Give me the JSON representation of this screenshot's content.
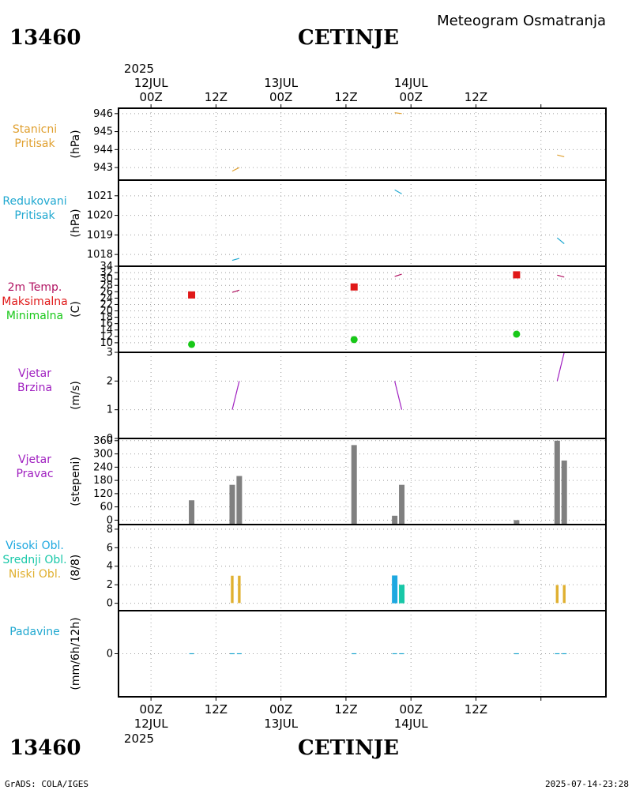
{
  "station": {
    "id": "13460",
    "name": "CETINJE",
    "subtitle": "Meteogram Osmatranja"
  },
  "time_axis": {
    "year": "2025",
    "top_ticks": [
      {
        "hour": "00Z",
        "date": "12JUL"
      },
      {
        "hour": "12Z",
        "date": ""
      },
      {
        "hour": "00Z",
        "date": "13JUL"
      },
      {
        "hour": "12Z",
        "date": ""
      },
      {
        "hour": "00Z",
        "date": "14JUL"
      },
      {
        "hour": "12Z",
        "date": ""
      }
    ],
    "x_range_hours": [
      -6,
      84
    ]
  },
  "footer": {
    "left": "GrADS: COLA/IGES",
    "right": "2025-07-14-23:28"
  },
  "colors": {
    "station_pressure": "#e0a030",
    "reduced_pressure": "#20a8d0",
    "temp_line": "#b01060",
    "temp_max": "#e01818",
    "temp_min": "#18c818",
    "wind_speed": "#a020c0",
    "wind_dir_bar": "#808080",
    "cloud_high": "#1ea8e0",
    "cloud_mid": "#18c8a8",
    "cloud_low": "#e0b030",
    "precip": "#20a8d0",
    "grid": "#a0a0a0"
  },
  "chart_data": [
    {
      "type": "line",
      "title": [
        "Stanicni",
        "Pritisak"
      ],
      "ylabel": "(hPa)",
      "ylim": [
        942.3,
        946.3
      ],
      "yticks": [
        943,
        944,
        945,
        946
      ],
      "series": [
        {
          "name": "Stanicni Pritisak",
          "segments": [
            [
              [
                15,
                942.8
              ],
              [
                16.3,
                943.0
              ]
            ],
            [
              [
                45,
                946.05
              ],
              [
                46.3,
                946.0
              ]
            ],
            [
              [
                75,
                943.7
              ],
              [
                76.3,
                943.6
              ]
            ]
          ]
        }
      ]
    },
    {
      "type": "line",
      "title": [
        "Redukovani",
        "Pritisak"
      ],
      "ylabel": "(hPa)",
      "ylim": [
        1017.4,
        1021.8
      ],
      "yticks": [
        1018,
        1019,
        1020,
        1021
      ],
      "series": [
        {
          "name": "Redukovani Pritisak",
          "segments": [
            [
              [
                15,
                1017.7
              ],
              [
                16.3,
                1017.8
              ]
            ],
            [
              [
                45,
                1021.3
              ],
              [
                46.3,
                1021.1
              ]
            ],
            [
              [
                75,
                1018.85
              ],
              [
                76.3,
                1018.55
              ]
            ]
          ]
        }
      ]
    },
    {
      "type": "line+scatter",
      "title": [
        "2m Temp.",
        "Maksimalna",
        "Minimalna"
      ],
      "ylabel": "(C)",
      "ylim": [
        7,
        34
      ],
      "yticks": [
        10,
        12,
        14,
        16,
        18,
        20,
        22,
        24,
        26,
        28,
        30,
        32,
        34
      ],
      "series": [
        {
          "name": "2m Temp.",
          "segments": [
            [
              [
                15,
                25.8
              ],
              [
                16.3,
                26.5
              ]
            ],
            [
              [
                45,
                30.8
              ],
              [
                46.3,
                31.5
              ]
            ],
            [
              [
                75,
                31.2
              ],
              [
                76.3,
                30.6
              ]
            ]
          ]
        },
        {
          "name": "Maksimalna",
          "points": [
            [
              7.5,
              25.0
            ],
            [
              37.5,
              27.5
            ],
            [
              67.5,
              31.3
            ]
          ]
        },
        {
          "name": "Minimalna",
          "points": [
            [
              7.5,
              9.5
            ],
            [
              37.5,
              11.0
            ],
            [
              67.5,
              12.7
            ]
          ]
        }
      ]
    },
    {
      "type": "line",
      "title": [
        "Vjetar",
        "Brzina"
      ],
      "ylabel": "(m/s)",
      "ylim": [
        0,
        3
      ],
      "yticks": [
        0,
        1,
        2,
        3
      ],
      "series": [
        {
          "name": "Vjetar Brzina",
          "segments": [
            [
              [
                15,
                1.0
              ],
              [
                16.3,
                2.0
              ]
            ],
            [
              [
                45,
                2.0
              ],
              [
                46.3,
                1.0
              ]
            ],
            [
              [
                75,
                2.0
              ],
              [
                76.3,
                3.0
              ]
            ]
          ]
        }
      ]
    },
    {
      "type": "bar",
      "title": [
        "Vjetar",
        "Pravac"
      ],
      "ylabel": "(stepeni)",
      "ylim": [
        -20,
        370
      ],
      "yticks": [
        0,
        60,
        120,
        180,
        240,
        300,
        360
      ],
      "series": [
        {
          "name": "Vjetar Pravac",
          "bars": [
            [
              7.5,
              90
            ],
            [
              15,
              160
            ],
            [
              16.3,
              200
            ],
            [
              37.5,
              340
            ],
            [
              45,
              20
            ],
            [
              46.3,
              160
            ],
            [
              67.5,
              0
            ],
            [
              75,
              360
            ],
            [
              76.3,
              270
            ]
          ]
        }
      ]
    },
    {
      "type": "bar",
      "title": [
        "Visoki Obl.",
        "Srednji Obl.",
        "Niski Obl."
      ],
      "ylabel": "(8/8)",
      "ylim": [
        -0.8,
        8.5
      ],
      "yticks": [
        0,
        2,
        4,
        6,
        8
      ],
      "series": [
        {
          "name": "Visoki Obl.",
          "bars": [
            [
              45,
              3
            ]
          ]
        },
        {
          "name": "Srednji Obl.",
          "bars": [
            [
              46.3,
              2
            ]
          ]
        },
        {
          "name": "Niski Obl.",
          "bars": [
            [
              15,
              3
            ],
            [
              16.3,
              3
            ],
            [
              75,
              2
            ],
            [
              76.3,
              2
            ]
          ]
        }
      ]
    },
    {
      "type": "line",
      "title": [
        "Padavine"
      ],
      "ylabel": "(mm/6h/12h)",
      "ylim": [
        -1,
        1
      ],
      "yticks": [
        0
      ],
      "series": [
        {
          "name": "Padavine",
          "points": [
            [
              7.5,
              0
            ],
            [
              15,
              0
            ],
            [
              16.3,
              0
            ],
            [
              37.5,
              0
            ],
            [
              45,
              0
            ],
            [
              46.3,
              0
            ],
            [
              67.5,
              0
            ],
            [
              75,
              0
            ],
            [
              76.3,
              0
            ]
          ]
        }
      ]
    }
  ]
}
